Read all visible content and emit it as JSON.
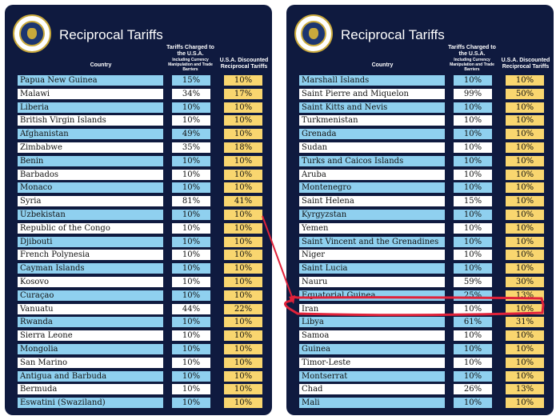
{
  "panels": [
    {
      "title": "Reciprocal Tariffs",
      "headers": {
        "country": "Country",
        "charged": "Tariffs Charged to the U.S.A.",
        "charged_sub": "Including Currency Manipulation and Trade Barriers",
        "discounted": "U.S.A. Discounted Reciprocal Tariffs"
      },
      "rows": [
        {
          "country": "Papua New Guinea",
          "charged": "15%",
          "discounted": "10%"
        },
        {
          "country": "Malawi",
          "charged": "34%",
          "discounted": "17%"
        },
        {
          "country": "Liberia",
          "charged": "10%",
          "discounted": "10%"
        },
        {
          "country": "British Virgin Islands",
          "charged": "10%",
          "discounted": "10%"
        },
        {
          "country": "Afghanistan",
          "charged": "49%",
          "discounted": "10%"
        },
        {
          "country": "Zimbabwe",
          "charged": "35%",
          "discounted": "18%"
        },
        {
          "country": "Benin",
          "charged": "10%",
          "discounted": "10%"
        },
        {
          "country": "Barbados",
          "charged": "10%",
          "discounted": "10%"
        },
        {
          "country": "Monaco",
          "charged": "10%",
          "discounted": "10%"
        },
        {
          "country": "Syria",
          "charged": "81%",
          "discounted": "41%"
        },
        {
          "country": "Uzbekistan",
          "charged": "10%",
          "discounted": "10%"
        },
        {
          "country": "Republic of the Congo",
          "charged": "10%",
          "discounted": "10%"
        },
        {
          "country": "Djibouti",
          "charged": "10%",
          "discounted": "10%"
        },
        {
          "country": "French Polynesia",
          "charged": "10%",
          "discounted": "10%"
        },
        {
          "country": "Cayman Islands",
          "charged": "10%",
          "discounted": "10%"
        },
        {
          "country": "Kosovo",
          "charged": "10%",
          "discounted": "10%"
        },
        {
          "country": "Curaçao",
          "charged": "10%",
          "discounted": "10%"
        },
        {
          "country": "Vanuatu",
          "charged": "44%",
          "discounted": "22%"
        },
        {
          "country": "Rwanda",
          "charged": "10%",
          "discounted": "10%"
        },
        {
          "country": "Sierra Leone",
          "charged": "10%",
          "discounted": "10%"
        },
        {
          "country": "Mongolia",
          "charged": "10%",
          "discounted": "10%"
        },
        {
          "country": "San Marino",
          "charged": "10%",
          "discounted": "10%"
        },
        {
          "country": "Antigua and Barbuda",
          "charged": "10%",
          "discounted": "10%"
        },
        {
          "country": "Bermuda",
          "charged": "10%",
          "discounted": "10%"
        },
        {
          "country": "Eswatini (Swaziland)",
          "charged": "10%",
          "discounted": "10%"
        }
      ]
    },
    {
      "title": "Reciprocal Tariffs",
      "headers": {
        "country": "Country",
        "charged": "Tariffs Charged to the U.S.A.",
        "charged_sub": "Including Currency Manipulation and Trade Barriers",
        "discounted": "U.S.A. Discounted Reciprocal Tariffs"
      },
      "rows": [
        {
          "country": "Marshall Islands",
          "charged": "10%",
          "discounted": "10%"
        },
        {
          "country": "Saint Pierre and Miquelon",
          "charged": "99%",
          "discounted": "50%"
        },
        {
          "country": "Saint Kitts and Nevis",
          "charged": "10%",
          "discounted": "10%"
        },
        {
          "country": "Turkmenistan",
          "charged": "10%",
          "discounted": "10%"
        },
        {
          "country": "Grenada",
          "charged": "10%",
          "discounted": "10%"
        },
        {
          "country": "Sudan",
          "charged": "10%",
          "discounted": "10%"
        },
        {
          "country": "Turks and Caicos Islands",
          "charged": "10%",
          "discounted": "10%"
        },
        {
          "country": "Aruba",
          "charged": "10%",
          "discounted": "10%"
        },
        {
          "country": "Montenegro",
          "charged": "10%",
          "discounted": "10%"
        },
        {
          "country": "Saint Helena",
          "charged": "15%",
          "discounted": "10%"
        },
        {
          "country": "Kyrgyzstan",
          "charged": "10%",
          "discounted": "10%"
        },
        {
          "country": "Yemen",
          "charged": "10%",
          "discounted": "10%"
        },
        {
          "country": "Saint Vincent and the Grenadines",
          "charged": "10%",
          "discounted": "10%"
        },
        {
          "country": "Niger",
          "charged": "10%",
          "discounted": "10%"
        },
        {
          "country": "Saint Lucia",
          "charged": "10%",
          "discounted": "10%"
        },
        {
          "country": "Nauru",
          "charged": "59%",
          "discounted": "30%"
        },
        {
          "country": "Equatorial Guinea",
          "charged": "25%",
          "discounted": "13%"
        },
        {
          "country": "Iran",
          "charged": "10%",
          "discounted": "10%"
        },
        {
          "country": "Libya",
          "charged": "61%",
          "discounted": "31%"
        },
        {
          "country": "Samoa",
          "charged": "10%",
          "discounted": "10%"
        },
        {
          "country": "Guinea",
          "charged": "10%",
          "discounted": "10%"
        },
        {
          "country": "Timor-Leste",
          "charged": "10%",
          "discounted": "10%"
        },
        {
          "country": "Montserrat",
          "charged": "10%",
          "discounted": "10%"
        },
        {
          "country": "Chad",
          "charged": "26%",
          "discounted": "13%"
        },
        {
          "country": "Mali",
          "charged": "10%",
          "discounted": "10%"
        }
      ]
    }
  ],
  "colors": {
    "panel_bg": "#0f1a3f",
    "row_blue": "#8fd0ef",
    "row_white": "#ffffff",
    "discount_cell": "#f9d66f",
    "annotation": "#e0223a"
  }
}
